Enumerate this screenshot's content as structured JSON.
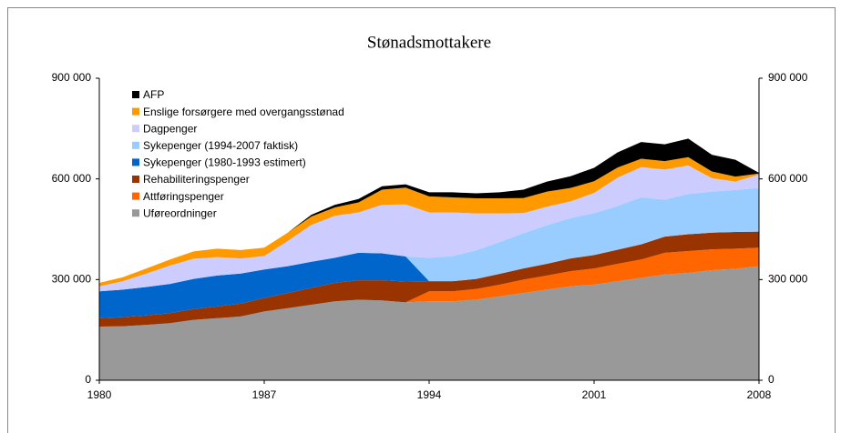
{
  "chart_data": {
    "type": "stacked_area",
    "title": "Stønadsmottakere",
    "x": [
      1980,
      1981,
      1982,
      1983,
      1984,
      1985,
      1986,
      1987,
      1988,
      1989,
      1990,
      1991,
      1992,
      1993,
      1994,
      1995,
      1996,
      1997,
      1998,
      1999,
      2000,
      2001,
      2002,
      2003,
      2004,
      2005,
      2006,
      2007,
      2008
    ],
    "xlim": [
      1980,
      2008
    ],
    "xticks": [
      1980,
      1987,
      1994,
      2001,
      2008
    ],
    "ylim": [
      0,
      900000
    ],
    "yticks": [
      {
        "value": 0,
        "label": "0"
      },
      {
        "value": 300000,
        "label": "300 000"
      },
      {
        "value": 600000,
        "label": "600 000"
      },
      {
        "value": 900000,
        "label": "900 000"
      }
    ],
    "y2lim": [
      0,
      900000
    ],
    "y2ticks": [
      {
        "value": 0,
        "label": "0"
      },
      {
        "value": 300000,
        "label": "300 000"
      },
      {
        "value": 600000,
        "label": "600 000"
      },
      {
        "value": 900000,
        "label": "900 000"
      }
    ],
    "legend": "upper left",
    "series": [
      {
        "name": "Uføreordninger",
        "color": "#999999",
        "values": [
          160000,
          161000,
          165000,
          170000,
          180000,
          185000,
          190000,
          205000,
          215000,
          225000,
          235000,
          240000,
          238000,
          232000,
          235000,
          235000,
          240000,
          250000,
          260000,
          270000,
          280000,
          285000,
          295000,
          305000,
          315000,
          320000,
          328000,
          332000,
          340000
        ]
      },
      {
        "name": "Attføringspenger",
        "color": "#ff6600",
        "values": [
          0,
          0,
          0,
          0,
          0,
          0,
          0,
          0,
          0,
          0,
          0,
          0,
          0,
          0,
          30000,
          30000,
          32000,
          35000,
          40000,
          42000,
          45000,
          48000,
          52000,
          55000,
          65000,
          65000,
          62000,
          60000,
          55000
        ]
      },
      {
        "name": "Rehabiliteringspenger",
        "color": "#993300",
        "values": [
          25000,
          27000,
          28000,
          30000,
          32000,
          35000,
          38000,
          40000,
          45000,
          50000,
          55000,
          58000,
          60000,
          62000,
          30000,
          30000,
          30000,
          32000,
          33000,
          35000,
          38000,
          40000,
          42000,
          45000,
          48000,
          50000,
          50000,
          50000,
          48000
        ]
      },
      {
        "name": "Sykepenger (1980-1993 estimert)",
        "color": "#0066cc",
        "values": [
          80000,
          82000,
          85000,
          87000,
          90000,
          92000,
          90000,
          85000,
          80000,
          78000,
          75000,
          82000,
          80000,
          75000,
          0,
          0,
          0,
          0,
          0,
          0,
          0,
          0,
          0,
          0,
          0,
          0,
          0,
          0,
          0
        ]
      },
      {
        "name": "Sykepenger (1994-2007 faktisk)",
        "color": "#99ccff",
        "values": [
          0,
          0,
          0,
          0,
          0,
          0,
          0,
          0,
          0,
          0,
          0,
          0,
          0,
          0,
          70000,
          75000,
          85000,
          95000,
          105000,
          115000,
          120000,
          125000,
          130000,
          140000,
          110000,
          120000,
          122000,
          125000,
          130000
        ]
      },
      {
        "name": "Dagpenger",
        "color": "#ccccff",
        "values": [
          15000,
          25000,
          40000,
          55000,
          60000,
          55000,
          45000,
          40000,
          75000,
          110000,
          125000,
          120000,
          145000,
          155000,
          135000,
          130000,
          110000,
          85000,
          60000,
          55000,
          50000,
          60000,
          85000,
          90000,
          90000,
          85000,
          40000,
          25000,
          40000
        ]
      },
      {
        "name": "Enslige forsørgere med overgangsstønad",
        "color": "#ff9900",
        "values": [
          10000,
          12000,
          15000,
          18000,
          22000,
          25000,
          25000,
          25000,
          25000,
          25000,
          25000,
          30000,
          45000,
          50000,
          48000,
          45000,
          45000,
          45000,
          45000,
          45000,
          40000,
          35000,
          30000,
          25000,
          25000,
          25000,
          20000,
          15000,
          3000
        ]
      },
      {
        "name": "AFP",
        "color": "#000000",
        "values": [
          0,
          0,
          0,
          0,
          0,
          0,
          0,
          0,
          0,
          5000,
          8000,
          10000,
          10000,
          10000,
          12000,
          15000,
          15000,
          18000,
          25000,
          30000,
          35000,
          40000,
          45000,
          50000,
          50000,
          55000,
          50000,
          50000,
          2000
        ]
      }
    ]
  }
}
